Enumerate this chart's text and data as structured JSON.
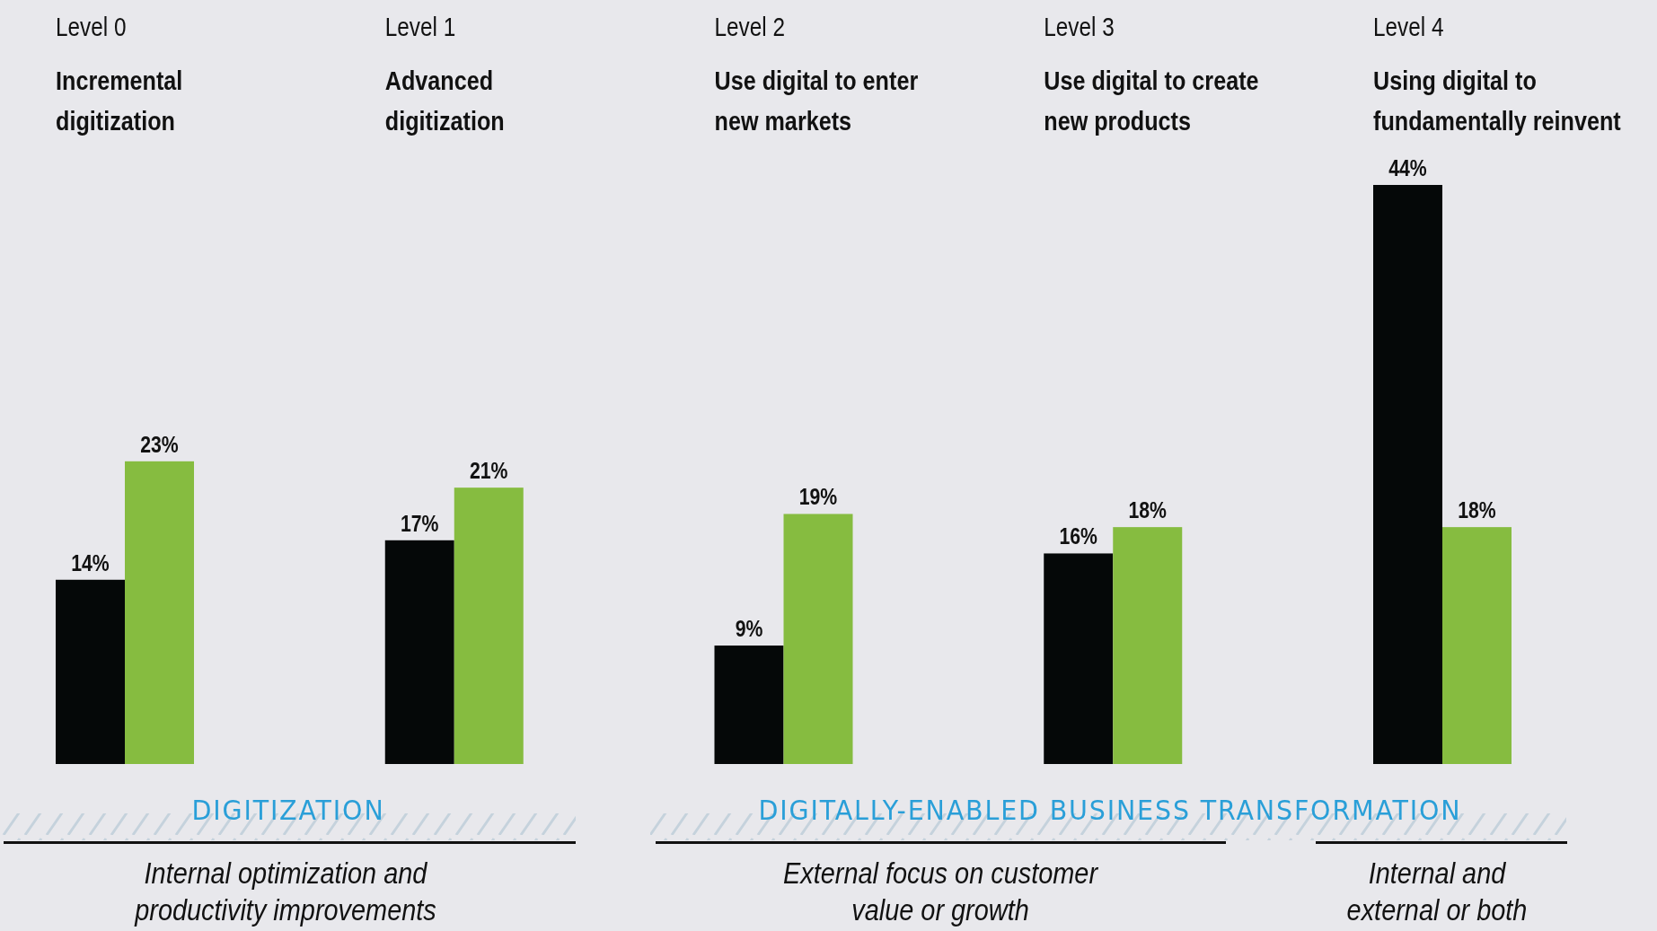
{
  "chart_data": {
    "type": "bar",
    "categories": [
      "Level 0\nIncremental\ndigitization",
      "Level 1\nAdvanced\ndigitization",
      "Level 2\nUse digital to enter\nnew markets",
      "Level 3\nUse digital to create\nnew products",
      "Level 4\nUsing digital to\nfundamentally reinvent"
    ],
    "series": [
      {
        "color": "#050808",
        "values": [
          14,
          17,
          9,
          16,
          44
        ],
        "value_labels": [
          "14%",
          "17%",
          "9%",
          "16%",
          "44%"
        ]
      },
      {
        "color": "#86bc40",
        "values": [
          23,
          21,
          19,
          18,
          18
        ],
        "value_labels": [
          "23%",
          "21%",
          "19%",
          "18%",
          "18%"
        ]
      }
    ],
    "annotations": [
      "DIGITIZATION",
      "DIGITALLY-ENABLED BUSINESS TRANSFORMATION",
      "Internal optimization and\nproductivity improvements",
      "External focus on customer\nvalue or growth",
      "Internal and\nexternal or both"
    ]
  }
}
